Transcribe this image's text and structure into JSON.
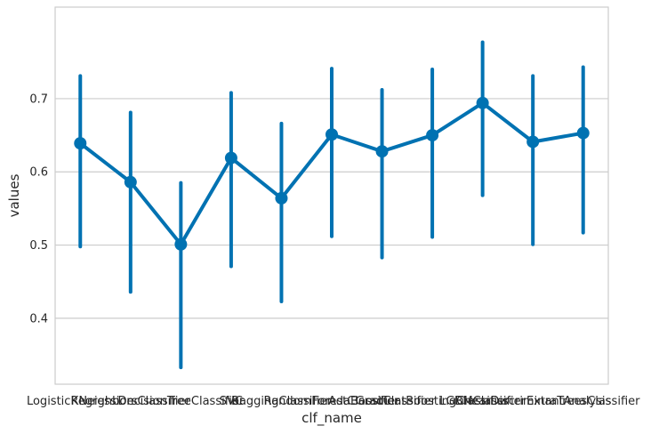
{
  "chart_data": {
    "type": "line",
    "style": "pointplot-with-error-bars",
    "xlabel": "clf_name",
    "ylabel": "values",
    "ylim": [
      0.31,
      0.825
    ],
    "yticks": [
      0.4,
      0.5,
      0.6,
      0.7
    ],
    "ytick_labels": [
      "0.4",
      "0.5",
      "0.6",
      "0.7"
    ],
    "grid": "horizontal",
    "color": "#0072b2",
    "categories": [
      "LogisticRegression",
      "KNeighborsClassifier",
      "DecisionTreeClassifier",
      "SVC",
      "BaggingClassifier",
      "RandomForestClassifier",
      "AdaBoostClassifier",
      "GradientBoostingClassifier",
      "LGBMClassifier",
      "LinearDiscriminantAnalysis",
      "ExtraTreesClassifier"
    ],
    "values": [
      0.639,
      0.586,
      0.501,
      0.619,
      0.564,
      0.651,
      0.628,
      0.65,
      0.694,
      0.641,
      0.653
    ],
    "ci_low": [
      0.498,
      0.436,
      0.333,
      0.471,
      0.423,
      0.512,
      0.483,
      0.511,
      0.568,
      0.501,
      0.517
    ],
    "ci_high": [
      0.731,
      0.681,
      0.585,
      0.708,
      0.666,
      0.741,
      0.712,
      0.74,
      0.777,
      0.731,
      0.743
    ]
  }
}
